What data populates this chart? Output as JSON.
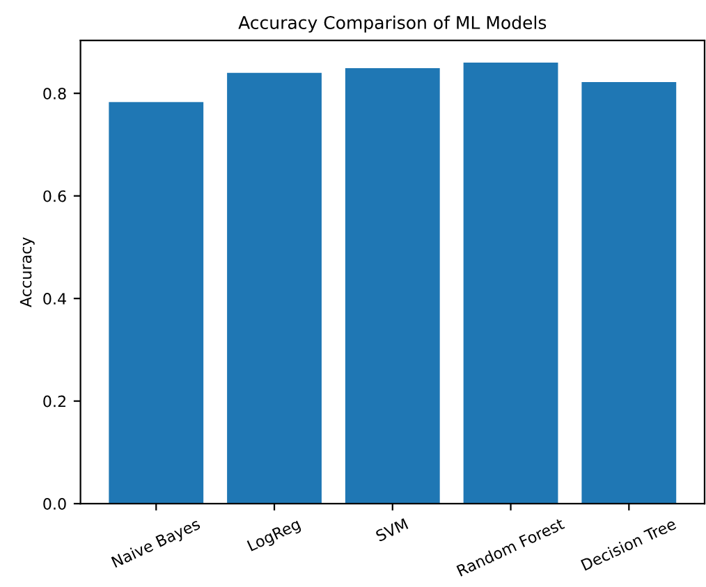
{
  "chart_data": {
    "type": "bar",
    "title": "Accuracy Comparison of ML Models",
    "ylabel": "Accuracy",
    "categories": [
      "Naive Bayes",
      "LogReg",
      "SVM",
      "Random Forest",
      "Decision Tree"
    ],
    "values": [
      0.783,
      0.84,
      0.849,
      0.86,
      0.822
    ],
    "color": "#1f77b4",
    "ylim": [
      0,
      0.903
    ],
    "yticks": [
      {
        "value": 0,
        "label": "0.0"
      },
      0.2,
      0.4,
      0.6,
      0.8
    ],
    "grid": false,
    "legend": false
  }
}
